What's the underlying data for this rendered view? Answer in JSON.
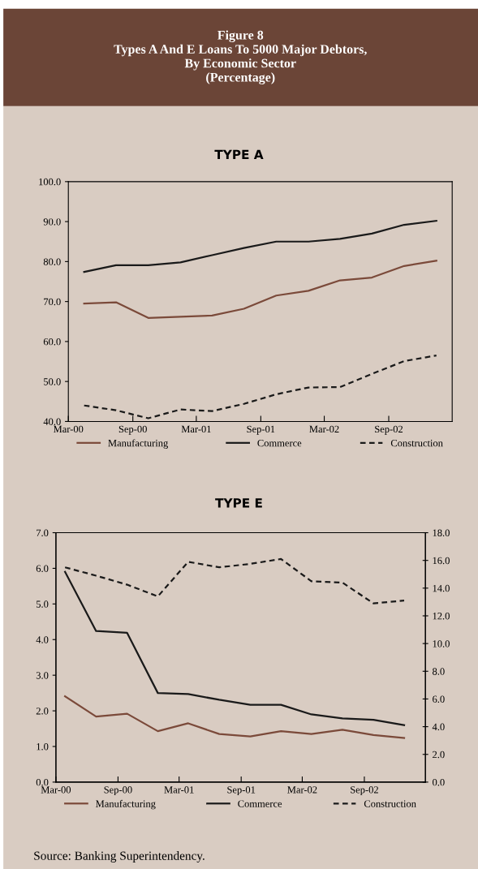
{
  "chart_data": [
    {
      "type": "line",
      "title": "TYPE A",
      "annotations": [
        "Figure 8\nTypes A And E Loans To 5000 Major Debtors,\nBy Economic Sector\n(Percentage)"
      ],
      "x": [
        "2000-04-15",
        "2000-07-15",
        "2000-10-15",
        "2001-01-15",
        "2001-04-15",
        "2001-07-15",
        "2001-10-15",
        "2002-01-15",
        "2002-04-15",
        "2002-07-15",
        "2002-10-15",
        "2003-01-15"
      ],
      "series": [
        {
          "name": "Manufacturing",
          "color": "#7b4a3a",
          "line_style": "solid",
          "values": [
            69.5,
            69.8,
            65.9,
            66.2,
            66.5,
            68.2,
            71.5,
            72.7,
            75.3,
            76.0,
            78.9,
            80.2
          ]
        },
        {
          "name": "Commerce",
          "color": "#1a1a1a",
          "line_style": "solid",
          "values": [
            77.4,
            79.1,
            79.1,
            79.8,
            81.6,
            83.4,
            85.0,
            85.0,
            85.7,
            87.0,
            89.2,
            90.2
          ]
        },
        {
          "name": "Construction",
          "color": "#1a1a1a",
          "line_style": "dashed",
          "values": [
            44.0,
            42.8,
            40.8,
            43.0,
            42.6,
            44.4,
            46.8,
            48.5,
            48.6,
            51.9,
            55.1,
            56.5
          ]
        }
      ],
      "xlim": [
        "2000-03-01",
        "2003-03-01"
      ],
      "xticks": [
        {
          "value": "2000-03-01",
          "label": "Mar-00"
        },
        {
          "value": "2000-09-01",
          "label": "Sep-00"
        },
        {
          "value": "2001-03-01",
          "label": "Mar-01"
        },
        {
          "value": "2001-09-01",
          "label": "Sep-01"
        },
        {
          "value": "2002-03-01",
          "label": "Mar-02"
        },
        {
          "value": "2002-09-01",
          "label": "Sep-02"
        }
      ],
      "ylim": [
        40,
        100
      ],
      "yticks": [
        {
          "value": 40,
          "label": "40.0"
        },
        {
          "value": 50,
          "label": "50.0"
        },
        {
          "value": 60,
          "label": "60.0"
        },
        {
          "value": 70,
          "label": "70.0"
        },
        {
          "value": 80,
          "label": "80.0"
        },
        {
          "value": 90,
          "label": "90.0"
        },
        {
          "value": 100,
          "label": "100.0"
        }
      ],
      "grid": false,
      "legend": "bottom",
      "marker": "none"
    },
    {
      "type": "line",
      "title": "TYPE E",
      "annotations": [
        "Source: Banking Superintendency."
      ],
      "x": [
        "2000-03-28",
        "2000-06-28",
        "2000-09-28",
        "2000-12-28",
        "2001-03-28",
        "2001-06-28",
        "2001-09-28",
        "2001-12-28",
        "2002-03-28",
        "2002-06-28",
        "2002-09-28",
        "2002-12-28"
      ],
      "series": [
        {
          "name": "Manufacturing",
          "color": "#7b4a3a",
          "line_style": "solid",
          "values": [
            2.41,
            1.84,
            1.92,
            1.43,
            1.65,
            1.35,
            1.28,
            1.43,
            1.35,
            1.47,
            1.32,
            1.24
          ]
        },
        {
          "name": "Commerce",
          "color": "#1a1a1a",
          "line_style": "solid",
          "values": [
            5.9,
            4.24,
            4.19,
            2.5,
            2.47,
            2.31,
            2.17,
            2.17,
            1.9,
            1.79,
            1.75,
            1.6
          ]
        },
        {
          "name": "Construction",
          "color": "#1a1a1a",
          "line_style": "dashed",
          "axis": "y2",
          "values": [
            15.5,
            14.9,
            14.25,
            13.4,
            15.9,
            15.5,
            15.75,
            16.1,
            14.5,
            14.4,
            12.9,
            13.1
          ]
        }
      ],
      "xlim": [
        "2000-03-01",
        "2003-03-01"
      ],
      "xticks": [
        {
          "value": "2000-03-01",
          "label": "Mar-00"
        },
        {
          "value": "2000-09-01",
          "label": "Sep-00"
        },
        {
          "value": "2001-03-01",
          "label": "Mar-01"
        },
        {
          "value": "2001-09-01",
          "label": "Sep-01"
        },
        {
          "value": "2002-03-01",
          "label": "Mar-02"
        },
        {
          "value": "2002-09-01",
          "label": "Sep-02"
        }
      ],
      "ylim": [
        0,
        7
      ],
      "yticks": [
        {
          "value": 0,
          "label": "0.0"
        },
        {
          "value": 1,
          "label": "1.0"
        },
        {
          "value": 2,
          "label": "2.0"
        },
        {
          "value": 3,
          "label": "3.0"
        },
        {
          "value": 4,
          "label": "4.0"
        },
        {
          "value": 5,
          "label": "5.0"
        },
        {
          "value": 6,
          "label": "6.0"
        },
        {
          "value": 7,
          "label": "7.0"
        }
      ],
      "y2lim": [
        0,
        18
      ],
      "y2ticks": [
        {
          "value": 0,
          "label": "0.0"
        },
        {
          "value": 2,
          "label": "2.0"
        },
        {
          "value": 4,
          "label": "4.0"
        },
        {
          "value": 6,
          "label": "6.0"
        },
        {
          "value": 8,
          "label": "8.0"
        },
        {
          "value": 10,
          "label": "10.0"
        },
        {
          "value": 12,
          "label": "12.0"
        },
        {
          "value": 14,
          "label": "14.0"
        },
        {
          "value": 16,
          "label": "16.0"
        },
        {
          "value": 18,
          "label": "18.0"
        }
      ],
      "grid": false,
      "legend": "bottom",
      "marker": "none"
    }
  ]
}
